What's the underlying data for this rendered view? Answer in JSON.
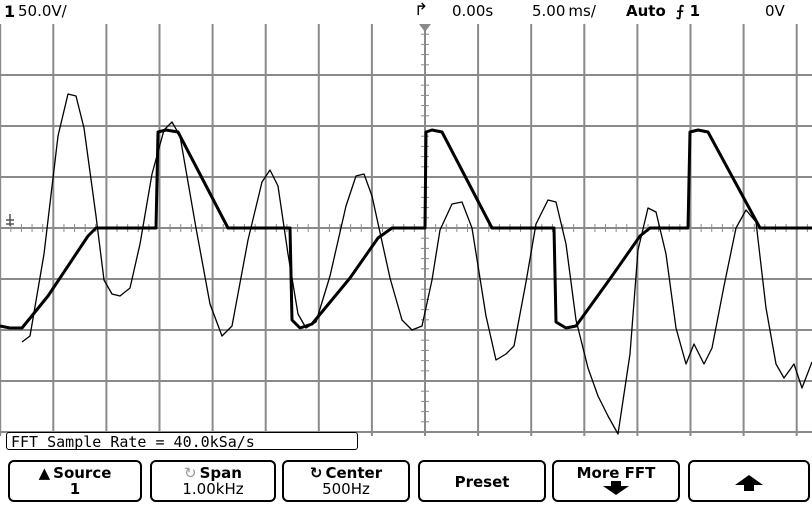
{
  "status": {
    "channel": "1",
    "volts_per_div": "50.0V/",
    "trig_marker": "↱",
    "time_offset": "0.00s",
    "time_per_div": "5.00 ms/",
    "trigger_mode": "Auto",
    "trigger_source": "1",
    "trigger_level": "0V"
  },
  "info_bar": "FFT Sample Rate = 40.0kSa/s",
  "softkeys": {
    "source_label": "Source",
    "source_value": "1",
    "span_label": "Span",
    "span_value": "1.00kHz",
    "center_label": "Center",
    "center_value": "500Hz",
    "preset_label": "Preset",
    "more_fft_label": "More FFT",
    "up_icon": "up-arrow-icon",
    "down_icon": "down-arrow-icon"
  },
  "colors": {
    "background": "#ffffff",
    "grid": "#8a8a8a",
    "trace": "#000000"
  }
}
